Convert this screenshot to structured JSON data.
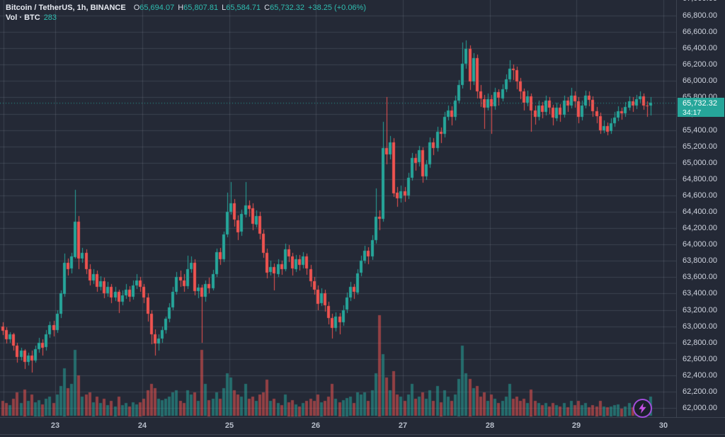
{
  "legend": {
    "symbol_title": "Bitcoin / TetherUS, 1h, BINANCE",
    "ohlc": [
      {
        "label": "O",
        "value": "65,694.07"
      },
      {
        "label": "H",
        "value": "65,807.81"
      },
      {
        "label": "L",
        "value": "65,584.71"
      },
      {
        "label": "C",
        "value": "65,732.32"
      }
    ],
    "change": "+38.25 (+0.06%)",
    "volume_label": "Vol · BTC",
    "volume_value": "283"
  },
  "price_axis": {
    "top_partial_tick": "67,000.00",
    "ticks": [
      "66,800.00",
      "66,600.00",
      "66,400.00",
      "66,200.00",
      "66,000.00",
      "65,800.00",
      "65,600.00",
      "65,400.00",
      "65,200.00",
      "65,000.00",
      "64,800.00",
      "64,600.00",
      "64,400.00",
      "64,200.00",
      "64,000.00",
      "63,800.00",
      "63,600.00",
      "63,400.00",
      "63,200.00",
      "63,000.00",
      "62,800.00",
      "62,600.00",
      "62,400.00",
      "62,200.00",
      "62,000.00"
    ],
    "badge": {
      "price": "65,732.32",
      "countdown": "34:17"
    }
  },
  "time_axis": {
    "labels": [
      "23",
      "24",
      "25",
      "26",
      "27",
      "28",
      "29",
      "30"
    ]
  },
  "icons": {
    "flash": "lightning-bolt"
  },
  "colors": {
    "background": "#242936",
    "grid": "rgba(140,150,170,0.22)",
    "up": "#26a69a",
    "down": "#ef5350",
    "vol_up": "rgba(38,166,154,0.55)",
    "vol_down": "rgba(239,83,80,0.55)",
    "last_price_line": "#26a69a",
    "badge_bg": "#26a69a",
    "flash_purple": "#a24ddb"
  },
  "chart_data": {
    "type": "candlestick+volume",
    "title": "Bitcoin / TetherUS, 1h, BINANCE",
    "interval": "1h",
    "last_price": 65732.32,
    "last_change": 38.25,
    "last_change_pct": 0.06,
    "bar_countdown": "34:17",
    "y_axis": {
      "min_visible": 61950,
      "max_visible": 67000,
      "tick_step": 200,
      "grid": true
    },
    "x_axis": {
      "day_labels": [
        "23",
        "24",
        "25",
        "26",
        "27",
        "28",
        "29",
        "30"
      ],
      "grid": true
    },
    "day_tick_indices": [
      14.5,
      38.5,
      62.5,
      86.5,
      110.5,
      134.5,
      158.5,
      182.5
    ],
    "candles": [
      [
        63000,
        63050,
        62890,
        62950,
        14
      ],
      [
        62950,
        62990,
        62790,
        62840,
        12
      ],
      [
        62840,
        62930,
        62800,
        62900,
        10
      ],
      [
        62900,
        62920,
        62700,
        62760,
        16
      ],
      [
        62760,
        62800,
        62560,
        62620,
        22
      ],
      [
        62620,
        62740,
        62580,
        62700,
        12
      ],
      [
        62700,
        62720,
        62480,
        62560,
        25
      ],
      [
        62560,
        62680,
        62520,
        62640,
        14
      ],
      [
        62640,
        62700,
        62430,
        62580,
        20
      ],
      [
        62580,
        62760,
        62550,
        62720,
        13
      ],
      [
        62720,
        62860,
        62680,
        62800,
        15
      ],
      [
        62800,
        62840,
        62640,
        62740,
        11
      ],
      [
        62740,
        62950,
        62700,
        62900,
        16
      ],
      [
        62900,
        63060,
        62860,
        63010,
        18
      ],
      [
        63010,
        63070,
        62880,
        62950,
        12
      ],
      [
        62950,
        63200,
        62920,
        63150,
        20
      ],
      [
        63150,
        63440,
        63100,
        63400,
        28
      ],
      [
        63400,
        63890,
        63360,
        63780,
        45
      ],
      [
        63780,
        63830,
        63620,
        63700,
        26
      ],
      [
        63700,
        63900,
        63650,
        63850,
        30
      ],
      [
        63850,
        64670,
        63830,
        64280,
        62
      ],
      [
        64280,
        64350,
        63700,
        63830,
        38
      ],
      [
        63830,
        63960,
        63780,
        63900,
        18
      ],
      [
        63900,
        63940,
        63640,
        63700,
        20
      ],
      [
        63700,
        63760,
        63500,
        63560,
        22
      ],
      [
        63560,
        63700,
        63520,
        63640,
        13
      ],
      [
        63640,
        63680,
        63420,
        63480,
        18
      ],
      [
        63480,
        63610,
        63440,
        63550,
        12
      ],
      [
        63550,
        63590,
        63340,
        63400,
        16
      ],
      [
        63400,
        63540,
        63360,
        63480,
        10
      ],
      [
        63480,
        63520,
        63290,
        63350,
        14
      ],
      [
        63350,
        63480,
        63310,
        63420,
        9
      ],
      [
        63420,
        63450,
        63160,
        63300,
        18
      ],
      [
        63300,
        63440,
        63260,
        63380,
        10
      ],
      [
        63380,
        63520,
        63340,
        63450,
        12
      ],
      [
        63450,
        63490,
        63300,
        63360,
        9
      ],
      [
        63360,
        63560,
        63330,
        63500,
        13
      ],
      [
        63500,
        63640,
        63460,
        63560,
        11
      ],
      [
        63560,
        63600,
        63420,
        63480,
        13
      ],
      [
        63480,
        63520,
        63290,
        63350,
        16
      ],
      [
        63350,
        63400,
        63050,
        63150,
        24
      ],
      [
        63150,
        63200,
        62780,
        62900,
        30
      ],
      [
        62900,
        62960,
        62640,
        62790,
        26
      ],
      [
        62790,
        62900,
        62700,
        62850,
        16
      ],
      [
        62850,
        63000,
        62800,
        62950,
        15
      ],
      [
        62950,
        63120,
        62910,
        63090,
        16
      ],
      [
        63090,
        63280,
        63050,
        63230,
        18
      ],
      [
        63230,
        63480,
        63190,
        63420,
        22
      ],
      [
        63420,
        63660,
        63380,
        63600,
        24
      ],
      [
        63600,
        63680,
        63480,
        63560,
        14
      ],
      [
        63560,
        63640,
        63420,
        63490,
        12
      ],
      [
        63490,
        63860,
        63450,
        63700,
        24
      ],
      [
        63700,
        63850,
        63650,
        63780,
        20
      ],
      [
        63780,
        63820,
        63380,
        63430,
        22
      ],
      [
        63430,
        63520,
        63350,
        63470,
        14
      ],
      [
        63470,
        63510,
        62800,
        63360,
        62
      ],
      [
        63360,
        63560,
        63300,
        63520,
        30
      ],
      [
        63520,
        63590,
        63400,
        63470,
        15
      ],
      [
        63470,
        63690,
        63440,
        63640,
        16
      ],
      [
        63640,
        63950,
        63600,
        63910,
        22
      ],
      [
        63910,
        63960,
        63750,
        63820,
        16
      ],
      [
        63820,
        64160,
        63790,
        64120,
        26
      ],
      [
        64120,
        64630,
        64080,
        64400,
        40
      ],
      [
        64400,
        64760,
        64360,
        64500,
        36
      ],
      [
        64500,
        64560,
        64220,
        64300,
        24
      ],
      [
        64300,
        64360,
        64060,
        64150,
        20
      ],
      [
        64150,
        64430,
        64110,
        64370,
        18
      ],
      [
        64370,
        64760,
        64330,
        64480,
        30
      ],
      [
        64480,
        64540,
        64340,
        64440,
        16
      ],
      [
        64440,
        64500,
        64170,
        64250,
        18
      ],
      [
        64250,
        64420,
        64210,
        64350,
        14
      ],
      [
        64350,
        64400,
        64060,
        64130,
        20
      ],
      [
        64130,
        64180,
        63830,
        63900,
        22
      ],
      [
        63900,
        63950,
        63590,
        63660,
        34
      ],
      [
        63660,
        63800,
        63620,
        63720,
        14
      ],
      [
        63720,
        63770,
        63440,
        63640,
        16
      ],
      [
        63640,
        63820,
        63600,
        63760,
        12
      ],
      [
        63760,
        63800,
        63630,
        63700,
        10
      ],
      [
        63700,
        64010,
        63670,
        63940,
        20
      ],
      [
        63940,
        63990,
        63780,
        63850,
        13
      ],
      [
        63850,
        63900,
        63620,
        63700,
        15
      ],
      [
        63700,
        63870,
        63660,
        63820,
        11
      ],
      [
        63820,
        63870,
        63680,
        63750,
        9
      ],
      [
        63750,
        63910,
        63710,
        63850,
        12
      ],
      [
        63850,
        63890,
        63630,
        63700,
        14
      ],
      [
        63700,
        63750,
        63480,
        63550,
        16
      ],
      [
        63550,
        63600,
        63380,
        63450,
        14
      ],
      [
        63450,
        63500,
        63200,
        63280,
        20
      ],
      [
        63280,
        63460,
        63240,
        63400,
        13
      ],
      [
        63400,
        63450,
        63180,
        63250,
        14
      ],
      [
        63250,
        63300,
        63020,
        63100,
        18
      ],
      [
        63100,
        63150,
        62850,
        62980,
        30
      ],
      [
        62980,
        63170,
        62940,
        63120,
        16
      ],
      [
        63120,
        63160,
        62900,
        63050,
        13
      ],
      [
        63050,
        63260,
        63010,
        63200,
        15
      ],
      [
        63200,
        63410,
        63160,
        63350,
        17
      ],
      [
        63350,
        63540,
        63310,
        63480,
        18
      ],
      [
        63480,
        63520,
        63340,
        63420,
        12
      ],
      [
        63420,
        63700,
        63390,
        63650,
        22
      ],
      [
        63650,
        63860,
        63610,
        63800,
        20
      ],
      [
        63800,
        63980,
        63760,
        63920,
        22
      ],
      [
        63920,
        63970,
        63760,
        63850,
        14
      ],
      [
        63850,
        64110,
        63810,
        64050,
        24
      ],
      [
        64050,
        64690,
        64010,
        64340,
        40
      ],
      [
        64340,
        64420,
        64180,
        64310,
        95
      ],
      [
        64310,
        65500,
        64280,
        65180,
        58
      ],
      [
        65180,
        65805,
        64980,
        65100,
        36
      ],
      [
        65100,
        65330,
        65040,
        65250,
        24
      ],
      [
        65250,
        65300,
        64580,
        64630,
        42
      ],
      [
        64630,
        64700,
        64460,
        64560,
        20
      ],
      [
        64560,
        64720,
        64515,
        64650,
        18
      ],
      [
        64650,
        64700,
        64520,
        64600,
        14
      ],
      [
        64600,
        64880,
        64560,
        64820,
        20
      ],
      [
        64820,
        65120,
        64780,
        65060,
        30
      ],
      [
        65060,
        65110,
        64900,
        65000,
        16
      ],
      [
        65000,
        65210,
        64960,
        65150,
        18
      ],
      [
        65150,
        65190,
        64760,
        64830,
        22
      ],
      [
        64830,
        65030,
        64790,
        64980,
        16
      ],
      [
        64980,
        65310,
        64940,
        65250,
        24
      ],
      [
        65250,
        65300,
        65090,
        65180,
        14
      ],
      [
        65180,
        65440,
        65140,
        65380,
        28
      ],
      [
        65380,
        65430,
        65240,
        65350,
        13
      ],
      [
        65350,
        65620,
        65310,
        65560,
        24
      ],
      [
        65560,
        65700,
        65520,
        65640,
        18
      ],
      [
        65640,
        65690,
        65460,
        65560,
        14
      ],
      [
        65560,
        65820,
        65520,
        65760,
        20
      ],
      [
        65760,
        66010,
        65720,
        65950,
        35
      ],
      [
        65950,
        66470,
        65910,
        66210,
        66
      ],
      [
        66210,
        66500,
        66150,
        66390,
        40
      ],
      [
        66390,
        66440,
        65890,
        65990,
        35
      ],
      [
        65990,
        66340,
        65950,
        66280,
        26
      ],
      [
        66280,
        66320,
        65780,
        65870,
        28
      ],
      [
        65870,
        65950,
        65680,
        65780,
        18
      ],
      [
        65780,
        65830,
        65410,
        65680,
        22
      ],
      [
        65680,
        65850,
        65640,
        65780,
        14
      ],
      [
        65780,
        65830,
        65350,
        65690,
        20
      ],
      [
        65690,
        65920,
        65650,
        65860,
        16
      ],
      [
        65860,
        65900,
        65700,
        65790,
        12
      ],
      [
        65790,
        65960,
        65750,
        65900,
        14
      ],
      [
        65900,
        66080,
        65860,
        66020,
        18
      ],
      [
        66020,
        66250,
        65980,
        66150,
        30
      ],
      [
        66150,
        66200,
        66010,
        66130,
        16
      ],
      [
        66130,
        66180,
        65900,
        65990,
        18
      ],
      [
        65990,
        66040,
        65780,
        65870,
        14
      ],
      [
        65870,
        65910,
        65640,
        65730,
        16
      ],
      [
        65730,
        65880,
        65690,
        65810,
        12
      ],
      [
        65810,
        65850,
        65385,
        65640,
        25
      ],
      [
        65640,
        65700,
        65470,
        65560,
        14
      ],
      [
        65560,
        65760,
        65520,
        65700,
        12
      ],
      [
        65700,
        65740,
        65540,
        65620,
        10
      ],
      [
        65620,
        65820,
        65580,
        65760,
        12
      ],
      [
        65760,
        65800,
        65590,
        65670,
        9
      ],
      [
        65670,
        65710,
        65460,
        65545,
        12
      ],
      [
        65545,
        65730,
        65505,
        65675,
        10
      ],
      [
        65675,
        65715,
        65500,
        65590,
        9
      ],
      [
        65590,
        65820,
        65550,
        65760,
        12
      ],
      [
        65760,
        65800,
        65620,
        65700,
        8
      ],
      [
        65700,
        65915,
        65660,
        65820,
        14
      ],
      [
        65820,
        65870,
        65670,
        65750,
        10
      ],
      [
        65750,
        65800,
        65480,
        65560,
        14
      ],
      [
        65560,
        65760,
        65520,
        65700,
        10
      ],
      [
        65700,
        65880,
        65660,
        65820,
        12
      ],
      [
        65820,
        65870,
        65690,
        65770,
        8
      ],
      [
        65770,
        65810,
        65560,
        65630,
        10
      ],
      [
        65630,
        65680,
        65480,
        65570,
        9
      ],
      [
        65570,
        65610,
        65350,
        65395,
        14
      ],
      [
        65395,
        65520,
        65360,
        65450,
        9
      ],
      [
        65450,
        65490,
        65330,
        65385,
        8
      ],
      [
        65385,
        65540,
        65350,
        65480,
        9
      ],
      [
        65480,
        65620,
        65440,
        65550,
        10
      ],
      [
        65550,
        65690,
        65510,
        65630,
        11
      ],
      [
        65630,
        65670,
        65520,
        65600,
        7
      ],
      [
        65600,
        65740,
        65560,
        65680,
        9
      ],
      [
        65680,
        65810,
        65640,
        65755,
        12
      ],
      [
        65755,
        65800,
        65620,
        65700,
        8
      ],
      [
        65700,
        65830,
        65660,
        65775,
        10
      ],
      [
        65775,
        65870,
        65735,
        65810,
        11
      ],
      [
        65810,
        65850,
        65650,
        65700,
        9
      ],
      [
        65700,
        65750,
        65560,
        65694.07,
        10
      ],
      [
        65694.07,
        65807.81,
        65584.71,
        65732.32,
        18
      ]
    ]
  }
}
